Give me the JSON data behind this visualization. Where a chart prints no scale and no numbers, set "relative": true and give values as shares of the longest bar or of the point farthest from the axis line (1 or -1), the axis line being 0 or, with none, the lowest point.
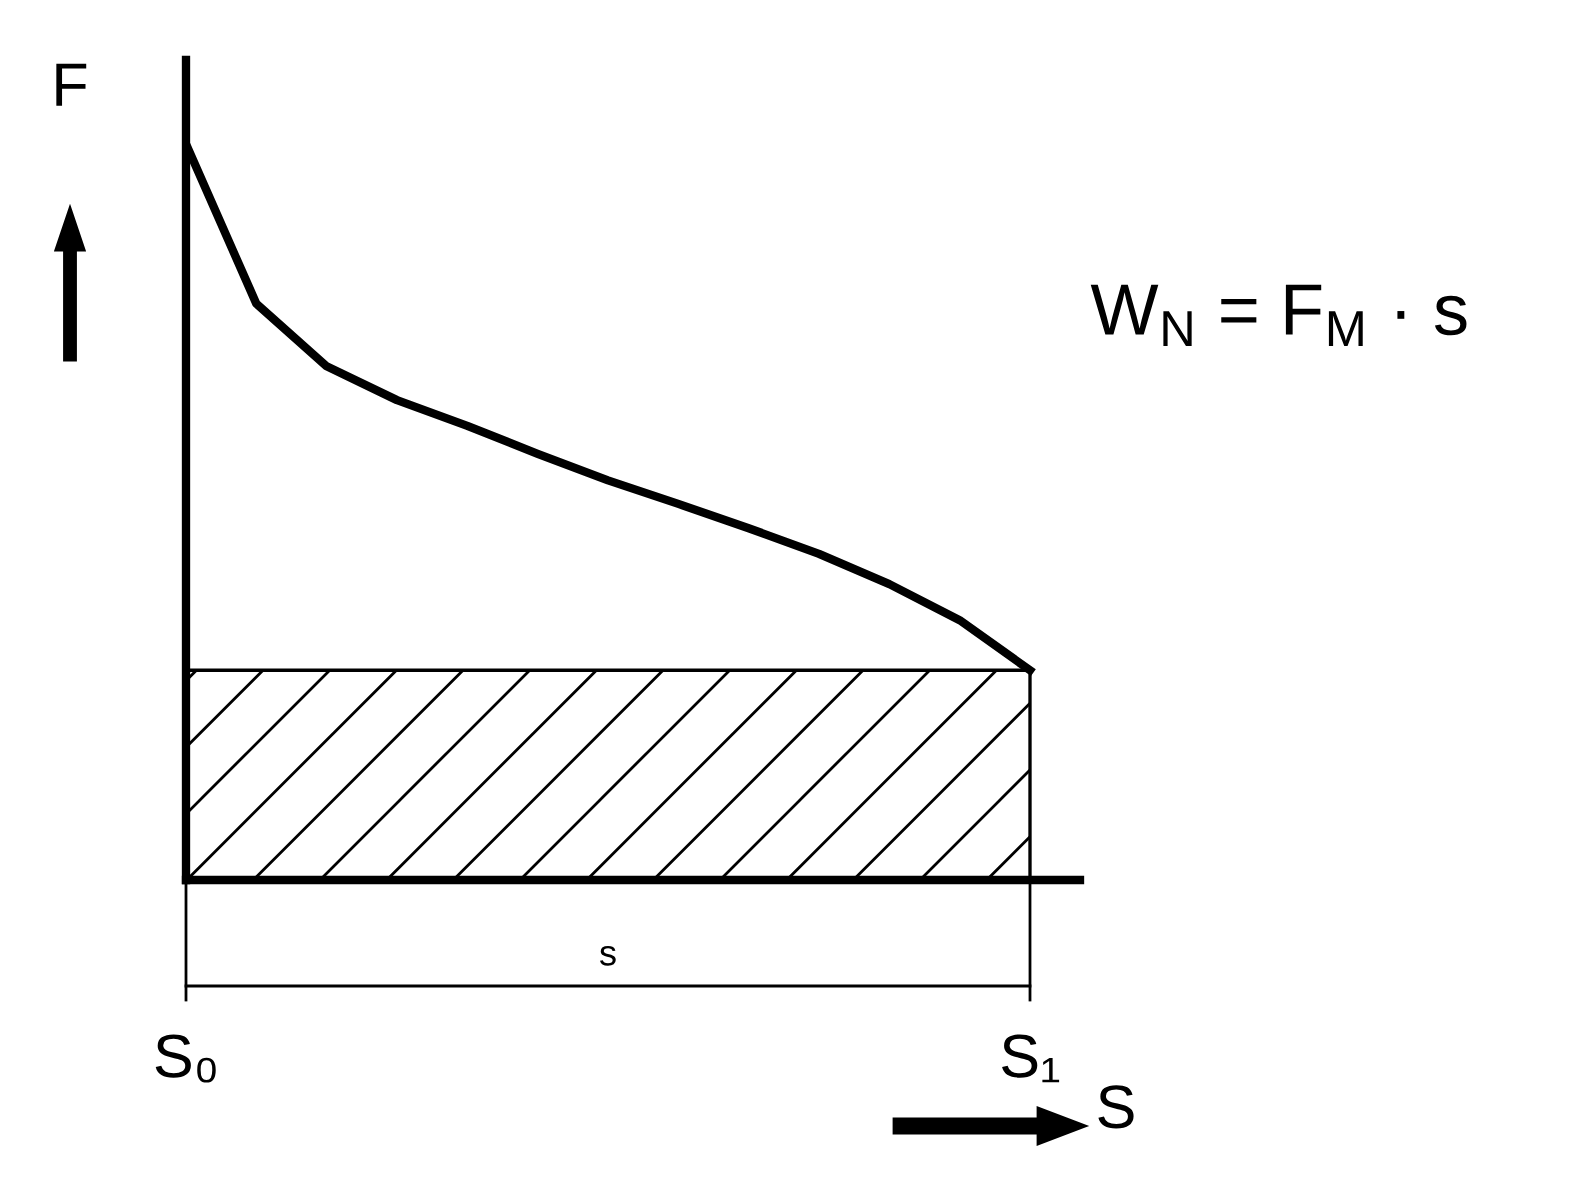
{
  "chart_data": {
    "type": "line",
    "relative": true,
    "xlabel": "S",
    "ylabel": "F",
    "categories": [
      "S₀",
      null,
      null,
      null,
      null,
      null,
      null,
      null,
      null,
      null,
      null,
      null,
      "S₁"
    ],
    "series": [
      {
        "color": "#000000",
        "values": [
          1.0,
          0.783,
          0.698,
          0.652,
          0.617,
          0.579,
          0.543,
          0.511,
          0.478,
          0.443,
          0.402,
          0.353,
          0.285
        ]
      }
    ],
    "bands": [
      {
        "axis": "y",
        "from": 0,
        "to": 0.285,
        "color": "#000000"
      }
    ],
    "annotations": [
      "W$_{N}$ = F$_{M}$ · s",
      "s"
    ],
    "tick_labels": "x",
    "grid": false,
    "legend": false,
    "marker": "none",
    "line_style": "solid"
  }
}
